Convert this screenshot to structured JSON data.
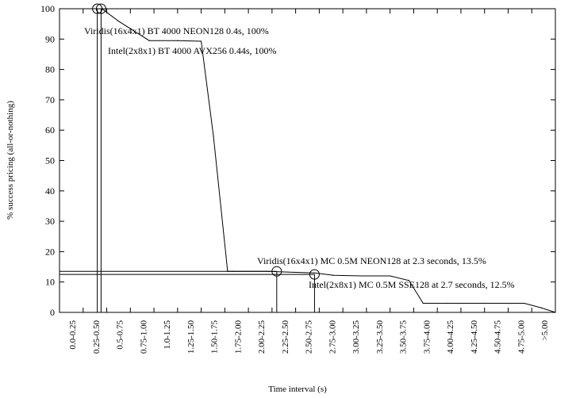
{
  "chart_data": {
    "type": "line",
    "title": "",
    "xlabel": "Time interval (s)",
    "ylabel": "% success pricing (all-or-nothing)",
    "ylim": [
      0,
      100
    ],
    "yticks": [
      0,
      10,
      20,
      30,
      40,
      50,
      60,
      70,
      80,
      90,
      100
    ],
    "xlim": [
      0,
      5.25
    ],
    "categories": [
      "0.0-0.25",
      "0.25-0.50",
      "0.5-0.75",
      "0.75-1.00",
      "1.0-1.25",
      "1.25-1.50",
      "1.50-1.75",
      "1.75-2.00",
      "2.00-2.25",
      "2.25-2.50",
      "2.50-2.75",
      "2.75-3.00",
      "3.00-3.25",
      "3.25-3.50",
      "3.50-3.75",
      "3.75-4.00",
      "4.00-4.25",
      "4.25-4.50",
      "4.50-4.75",
      "4.75-5.00",
      ">5.00"
    ],
    "grid": false,
    "series": [
      {
        "x": [
          0,
          0.45,
          0.62,
          0.95,
          1.25,
          1.5,
          1.63,
          1.78,
          1.84,
          2.2,
          2.5,
          2.7,
          2.9,
          3.2,
          3.5,
          3.7,
          3.85,
          4.1,
          4.5,
          4.92,
          5.1,
          5.25
        ],
        "y": [
          100,
          100,
          96,
          89.5,
          89.5,
          89.3,
          58,
          13.5,
          13.5,
          13.5,
          13.2,
          13,
          12.2,
          12,
          12,
          10.5,
          3,
          3,
          3,
          3,
          1.5,
          0
        ]
      }
    ],
    "reference_lines": [
      {
        "label": "Viridis(16x4x1) MC 0.5M NEON128 at 2.3 seconds, 13.5%",
        "x": 2.3,
        "y": 13.5
      },
      {
        "label": "Intel(2x8x1) MC 0.5M SSE128 at 2.7 seconds, 12.5%",
        "x": 2.7,
        "y": 12.5
      },
      {
        "label": "Viridis(16x4x1) BT 4000 NEON128 0.4s, 100%",
        "x": 0.4,
        "y": 100
      },
      {
        "label": "Intel(2x8x1) BT 4000 AVX256 0.44s, 100%",
        "x": 0.44,
        "y": 100
      }
    ],
    "annotations": [
      "Viridis(16x4x1) BT 4000 NEON128 0.4s, 100%",
      "Intel(2x8x1) BT 4000 AVX256 0.44s, 100%",
      "Viridis(16x4x1) MC 0.5M NEON128 at 2.3 seconds, 13.5%",
      "Intel(2x8x1) MC 0.5M SSE128 at 2.7 seconds, 12.5%"
    ]
  }
}
